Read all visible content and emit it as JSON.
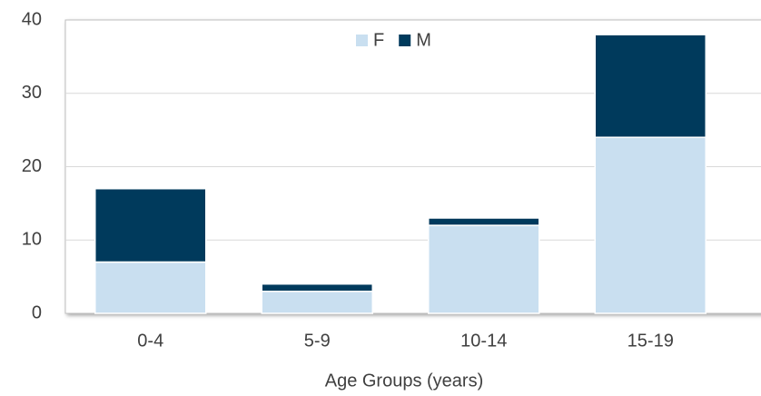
{
  "chart_data": {
    "type": "stacked_bar",
    "x_label": "Age Groups (years)",
    "categories": [
      "0-4",
      "5-9",
      "10-14",
      "15-19"
    ],
    "series": [
      {
        "name": "F",
        "color": "#c9dff0",
        "values": [
          7,
          3,
          12,
          24
        ]
      },
      {
        "name": "M",
        "color": "#003a5c",
        "values": [
          10,
          1,
          1,
          14
        ]
      }
    ],
    "ylim": [
      0,
      40
    ],
    "yticks": [
      0,
      10,
      20,
      30,
      40
    ],
    "grid": true,
    "legend": "top"
  }
}
